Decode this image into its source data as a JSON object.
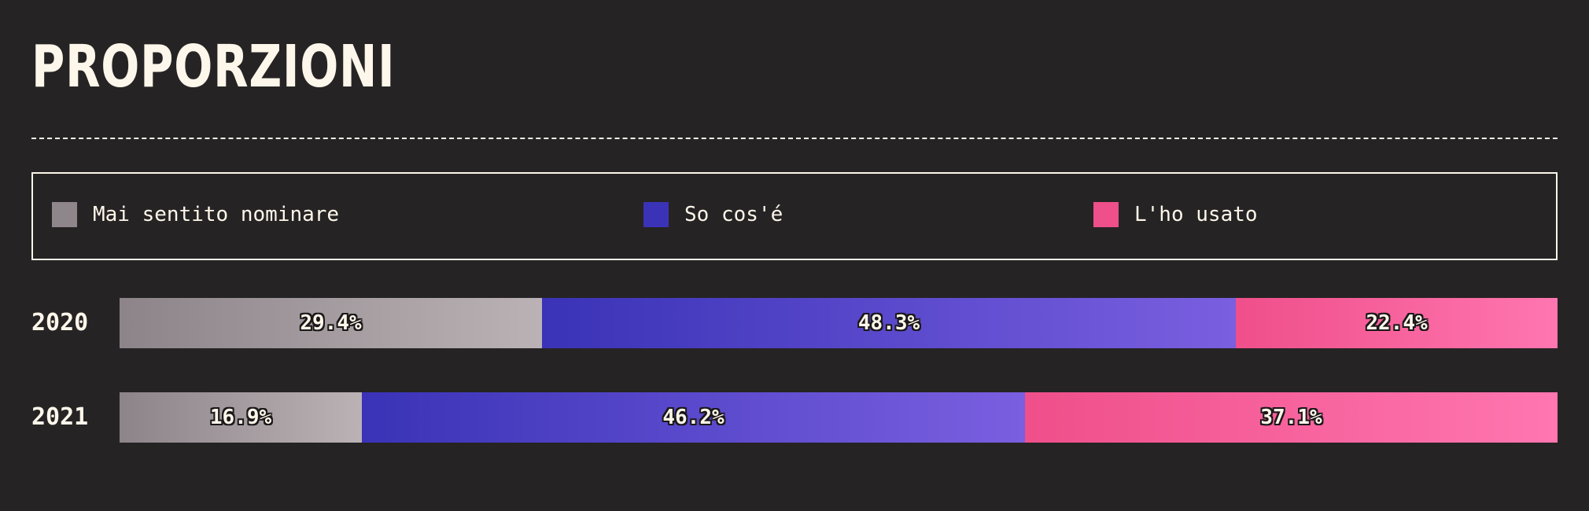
{
  "title": "PROPORZIONI",
  "chart_data": {
    "type": "bar",
    "orientation": "horizontal",
    "stacked": true,
    "normalized": true,
    "categories": [
      "2020",
      "2021"
    ],
    "series": [
      {
        "name": "Mai sentito nominare",
        "values": [
          29.4,
          16.9
        ],
        "labels": [
          "29.4%",
          "16.9%"
        ],
        "color_start": "#8c8489",
        "color_end": "#bbb2b5"
      },
      {
        "name": "So cos'é",
        "values": [
          48.3,
          46.2
        ],
        "labels": [
          "48.3%",
          "46.2%"
        ],
        "color_start": "#3a33b7",
        "color_end": "#7a5fe0"
      },
      {
        "name": "L'ho usato",
        "values": [
          22.4,
          37.1
        ],
        "labels": [
          "22.4%",
          "37.1%"
        ],
        "color_start": "#ef4f8a",
        "color_end": "#ff76b0"
      }
    ],
    "legend": {
      "position": "top",
      "items": [
        {
          "label": "Mai sentito nominare",
          "color": "#8f868b"
        },
        {
          "label": "So cos'é",
          "color": "#3a33b7"
        },
        {
          "label": "L'ho usato",
          "color": "#ef4f8a"
        }
      ]
    },
    "xlim": [
      0,
      100
    ],
    "grid": false
  }
}
